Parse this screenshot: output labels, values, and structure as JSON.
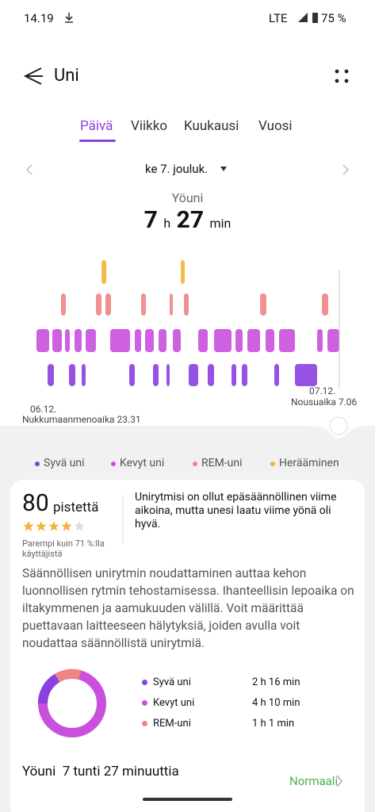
{
  "status": {
    "time": "14.19",
    "network": "LTE",
    "battery": "75 %"
  },
  "header": {
    "title": "Uni"
  },
  "tabs": [
    "Päivä",
    "Viikko",
    "Kuukausi",
    "Vuosi"
  ],
  "active_tab": 0,
  "date": "ke 7. jouluk.",
  "summary": {
    "label": "Yöuni",
    "hours": "7",
    "h": "h",
    "minutes": "27",
    "min": "min"
  },
  "hypnogram": {
    "start_date": "06.12.",
    "start_label": "Nukkumaanmenoaika 23.31",
    "end_date": "07.12.",
    "end_label": "Nousuaika 7.06"
  },
  "legend": [
    {
      "name": "Syvä uni",
      "color": "#8a3fe0"
    },
    {
      "name": "Kevyt uni",
      "color": "#c850dc"
    },
    {
      "name": "REM-uni",
      "color": "#ee8484"
    },
    {
      "name": "Herääminen",
      "color": "#f2b33a"
    }
  ],
  "score": {
    "value": "80",
    "unit": "pistettä",
    "stars": 4,
    "star_total": 5,
    "compare": "Parempi kuin 71 %:lla käyttäjistä",
    "note": "Unirytmisi on ollut epäsäännöllinen viime aikoina, mutta unesi laatu viime yönä oli hyvä."
  },
  "advice": "Säännöllisen unirytmin noudattaminen auttaa kehon luonnollisen rytmin tehostamisessa. Ihanteellisin lepoaika on iltakymmenen ja aamukuuden välillä. Voit määrittää puettavaan laitteeseen hälytyksiä, joiden avulla voit noudattaa säännöllistä unirytmiä.",
  "breakdown": [
    {
      "name": "Syvä uni",
      "value": "2 h 16 min"
    },
    {
      "name": "Kevyt uni",
      "value": "4 h 10 min"
    },
    {
      "name": "REM-uni",
      "value": "1 h 1 min"
    }
  ],
  "night": {
    "title": "Yöuni  7 tunti 27 minuuttia",
    "status": "Normaali"
  }
}
